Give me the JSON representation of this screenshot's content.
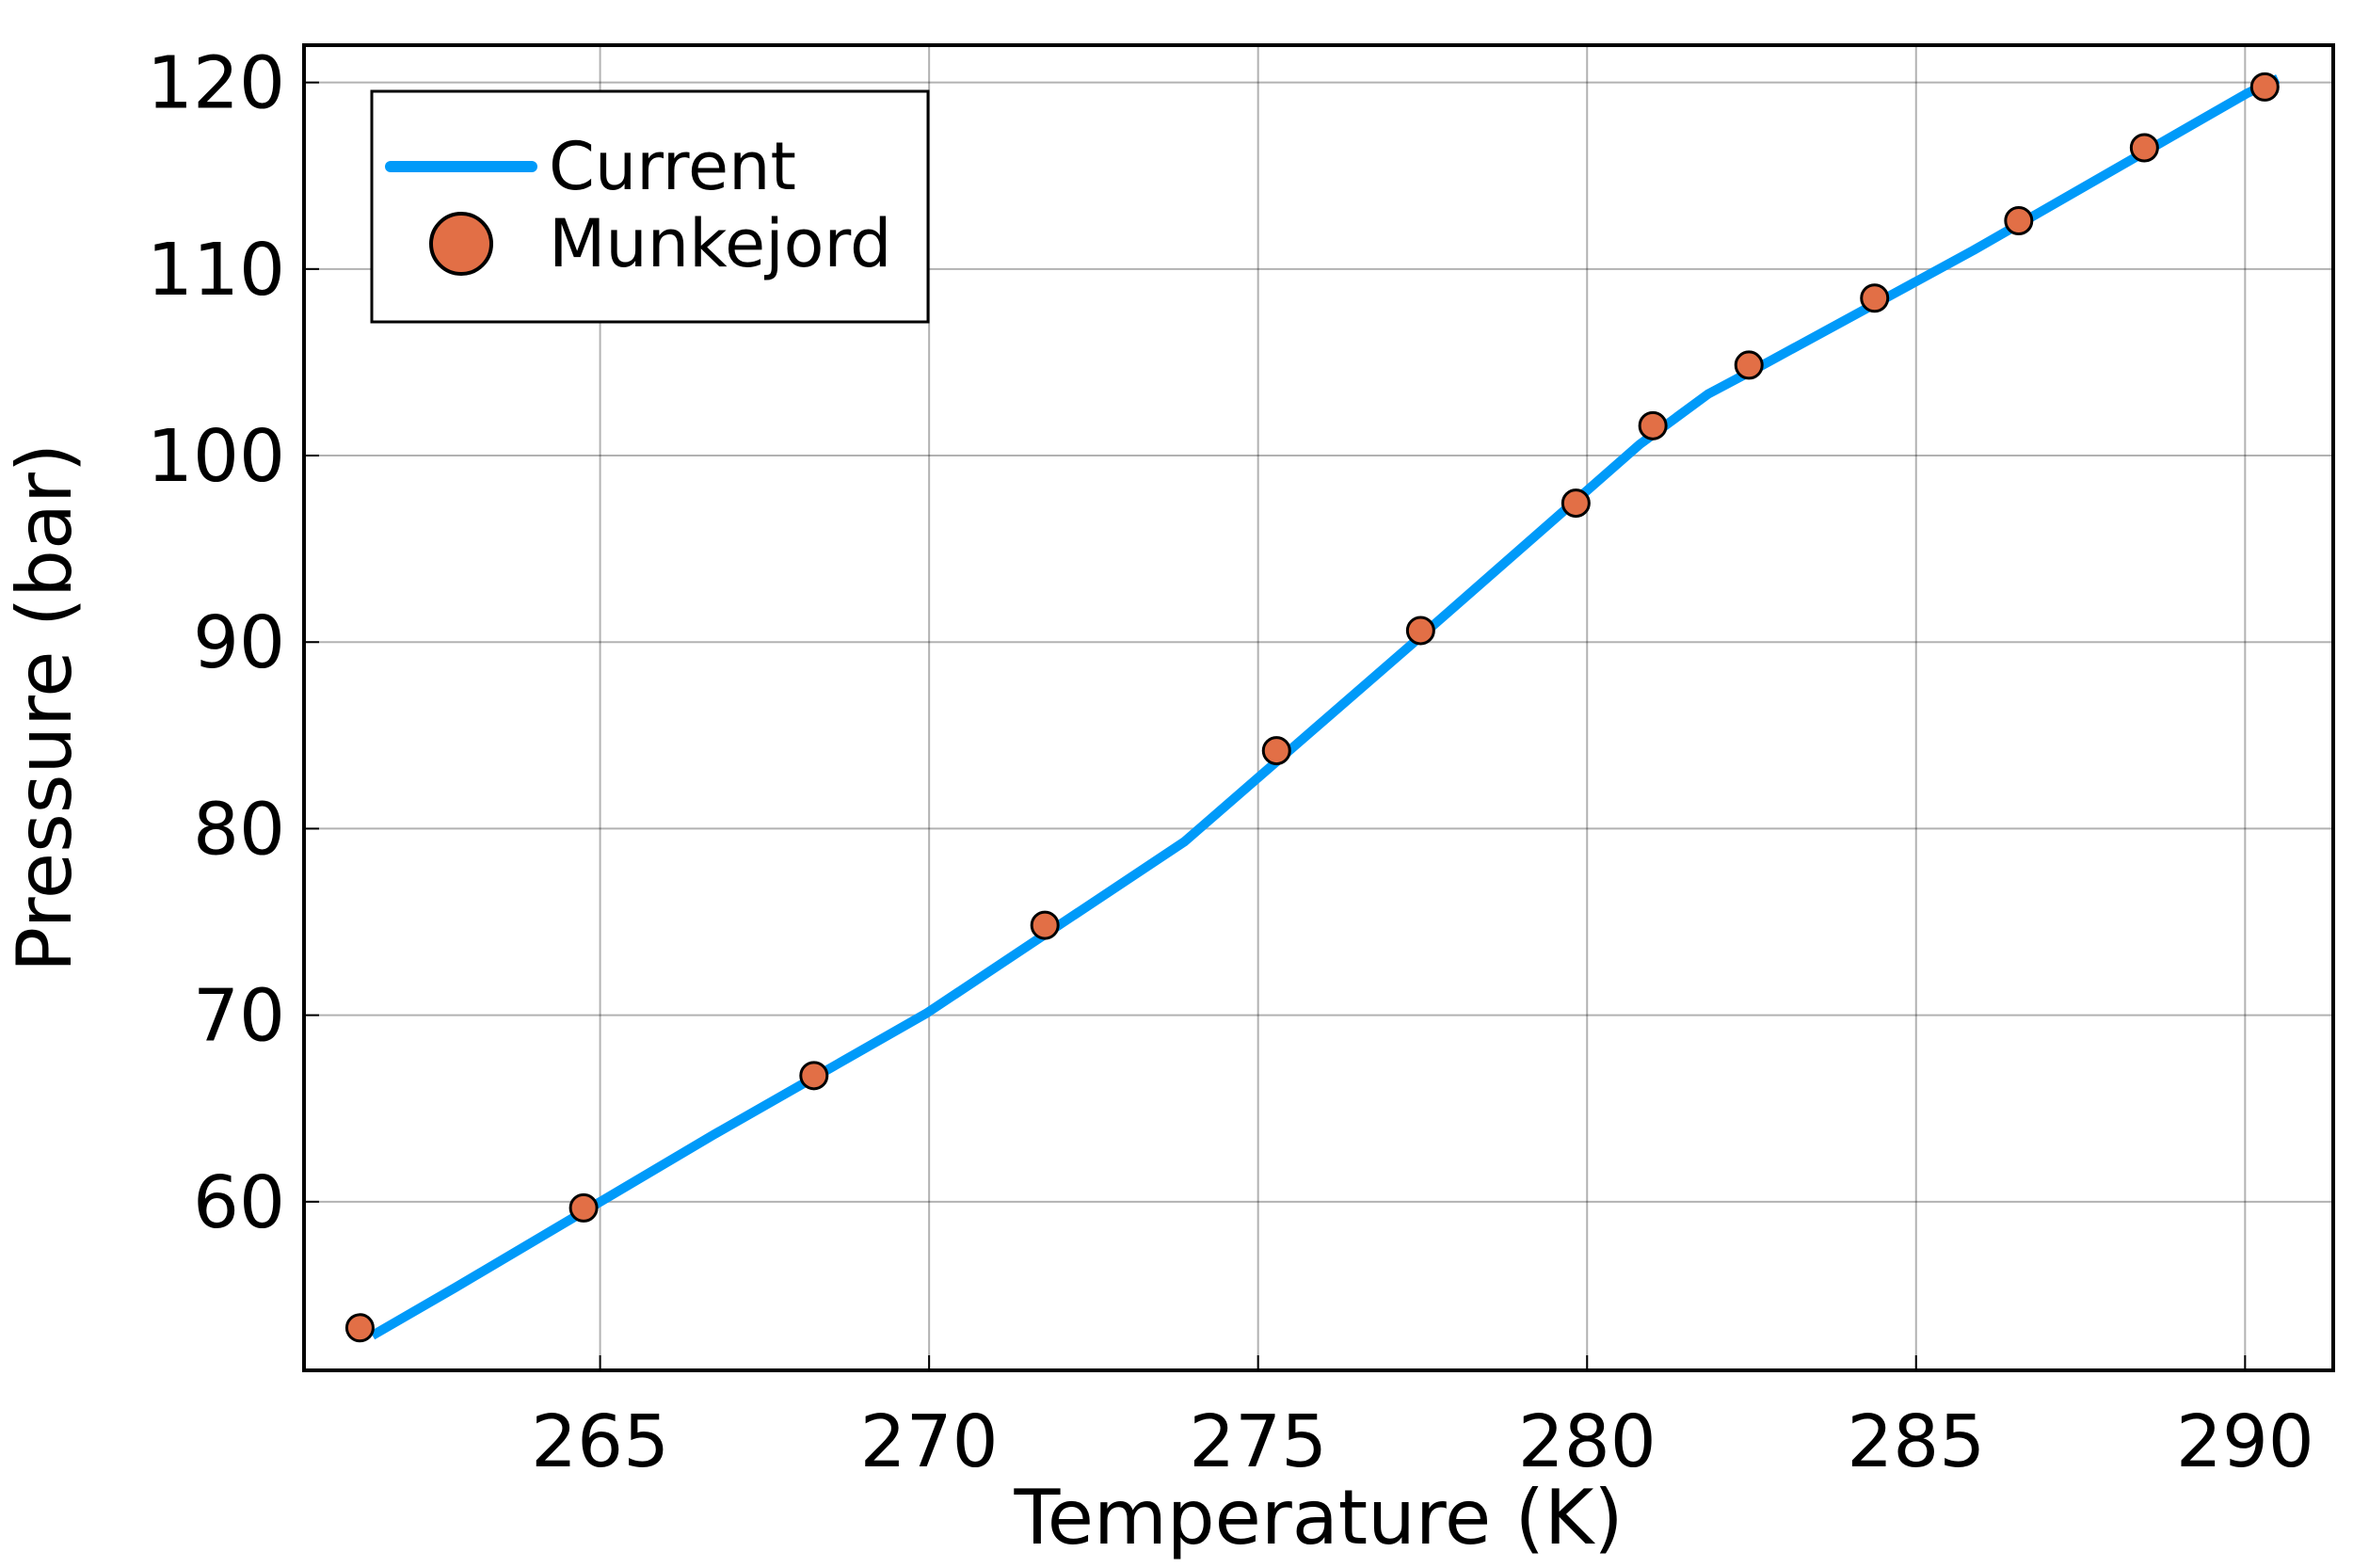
{
  "chart_data": {
    "type": "line",
    "xlabel": "Temperature (K)",
    "ylabel": "Pressure (bar)",
    "xlim": [
      260.5,
      291.34
    ],
    "ylim": [
      50.96,
      122.0
    ],
    "xticks": [
      265,
      270,
      275,
      280,
      285,
      290
    ],
    "yticks": [
      60,
      70,
      80,
      90,
      100,
      110,
      120
    ],
    "grid": true,
    "legend": "top-left",
    "series": [
      {
        "name": "Current",
        "type": "line",
        "color": "#009af9",
        "x": [
          261.54,
          262.8,
          266.73,
          269.96,
          273.88,
          277.34,
          280.8,
          281.84,
          282.64,
          285.87,
          290.02,
          290.5
        ],
        "values": [
          52.83,
          55.4,
          63.6,
          70.1,
          79.3,
          89.9,
          100.6,
          103.3,
          104.8,
          111.0,
          119.4,
          120.2
        ]
      },
      {
        "name": "Munkejord",
        "type": "scatter",
        "color": "#e26f46",
        "x": [
          261.35,
          264.75,
          268.25,
          271.76,
          275.28,
          277.47,
          279.83,
          281.0,
          282.46,
          284.37,
          286.56,
          288.47,
          290.3
        ],
        "values": [
          53.24,
          59.67,
          66.76,
          74.82,
          84.18,
          90.62,
          97.45,
          101.6,
          104.85,
          108.44,
          112.59,
          116.5,
          119.76
        ]
      }
    ]
  }
}
